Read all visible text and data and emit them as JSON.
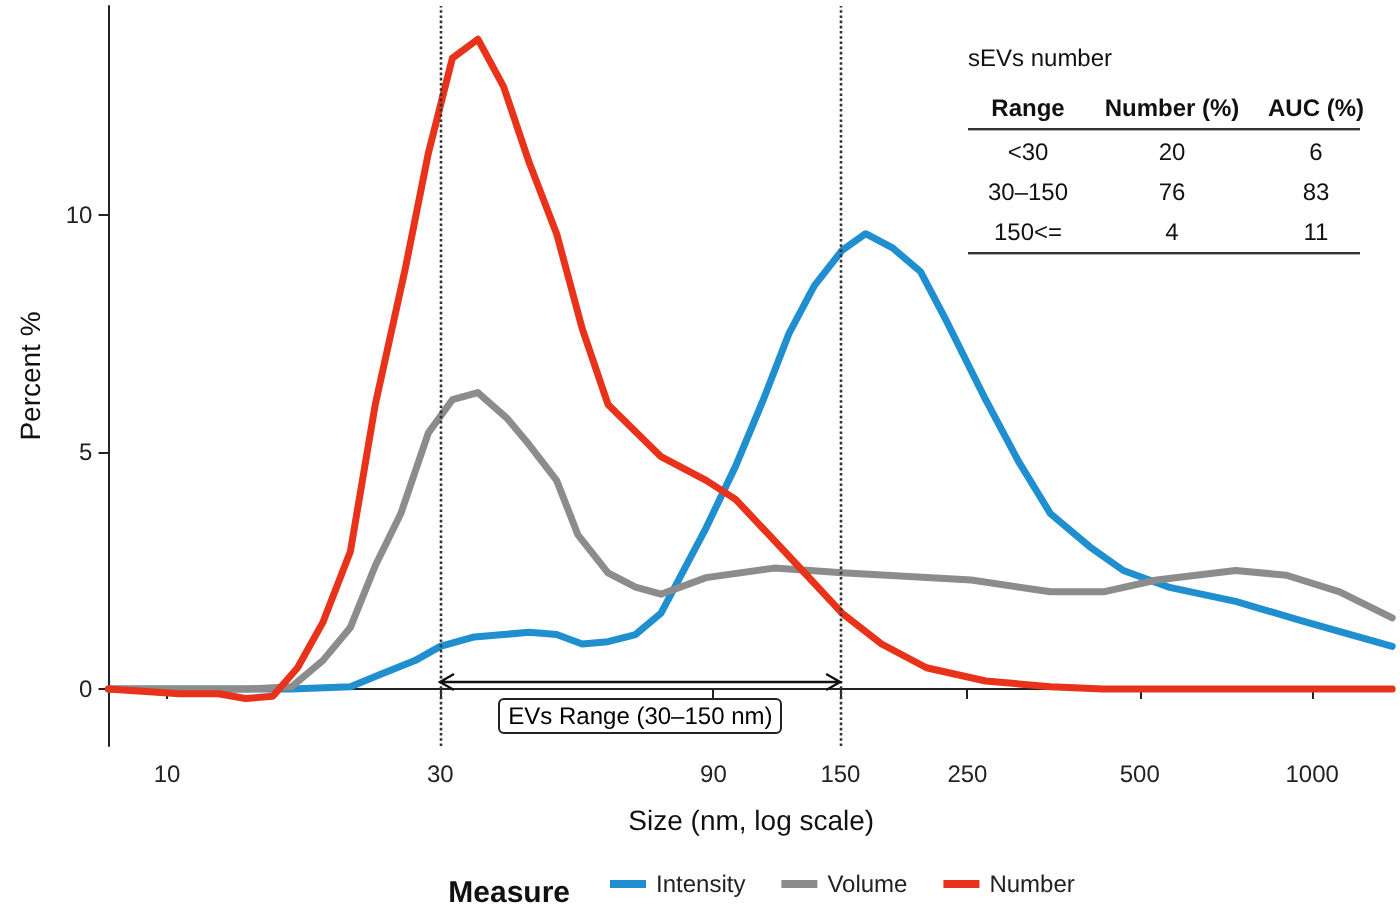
{
  "chart_data": {
    "type": "line",
    "xlabel": "Size (nm, log scale)",
    "ylabel": "Percent %",
    "legend_title": "Measure",
    "legend": "bottom",
    "grid": false,
    "marker": "none",
    "line_style": "solid",
    "log": "x",
    "xlim": [
      7.9,
      1390
    ],
    "xticks": [
      10,
      30,
      90,
      150,
      250,
      500,
      1000
    ],
    "ylim": [
      -1.2,
      14.4
    ],
    "yticks": [
      0,
      5,
      10
    ],
    "ref_lines": [
      {
        "axis": "x",
        "value": 30,
        "label": null,
        "color": "#333333",
        "line_style": "dotted"
      },
      {
        "axis": "x",
        "value": 150,
        "label": null,
        "color": "#333333",
        "line_style": "dotted"
      }
    ],
    "annotations": [
      "EVs Range (30–150 nm)",
      "sEVs number",
      "Range",
      "Number (%)",
      "AUC (%)",
      "<30",
      "20",
      "6",
      "30–150",
      "76",
      "83",
      "150<=",
      "4",
      "11"
    ],
    "series": [
      {
        "name": "Intensity",
        "color": "#1f8fcf",
        "x": [
          7.9,
          10.5,
          13.7,
          16.5,
          20.9,
          23.5,
          27.1,
          30.0,
          34.4,
          38.7,
          42.9,
          47.9,
          53.1,
          58.9,
          65.8,
          72.9,
          87.4,
          98.4,
          110,
          122,
          135,
          151,
          166,
          185,
          207,
          230,
          269,
          307,
          349,
          409,
          468,
          561,
          735,
          953,
          1380
        ],
        "values": [
          0,
          0,
          0,
          0,
          0.05,
          0.3,
          0.6,
          0.9,
          1.1,
          1.15,
          1.2,
          1.15,
          0.95,
          1.0,
          1.15,
          1.6,
          3.4,
          4.7,
          6.1,
          7.5,
          8.5,
          9.25,
          9.6,
          9.3,
          8.8,
          7.75,
          6.1,
          4.8,
          3.7,
          3.0,
          2.5,
          2.15,
          1.85,
          1.45,
          0.9
        ]
      },
      {
        "name": "Volume",
        "color": "#8c8c8c",
        "x": [
          7.9,
          10.5,
          13.7,
          16.5,
          18.7,
          20.9,
          23.1,
          25.6,
          28.6,
          31.5,
          34.9,
          39.3,
          42.9,
          47.9,
          52.2,
          58.9,
          65.8,
          72.9,
          87.4,
          115,
          151,
          254,
          349,
          432,
          535,
          735,
          902,
          1117,
          1380
        ],
        "values": [
          0,
          0,
          0,
          0.05,
          0.6,
          1.3,
          2.6,
          3.7,
          5.4,
          6.1,
          6.25,
          5.7,
          5.15,
          4.4,
          3.25,
          2.45,
          2.15,
          2.0,
          2.35,
          2.55,
          2.45,
          2.3,
          2.05,
          2.05,
          2.3,
          2.5,
          2.4,
          2.05,
          1.5
        ]
      },
      {
        "name": "Number",
        "color": "#e8321a",
        "x": [
          7.9,
          9.17,
          10.5,
          12.3,
          13.7,
          15.3,
          16.9,
          18.7,
          20.9,
          23.1,
          26.1,
          28.6,
          31.5,
          34.9,
          38.7,
          42.9,
          47.9,
          53.1,
          58.9,
          72.9,
          87.4,
          98.4,
          122,
          151,
          177,
          212,
          269,
          349,
          432,
          1380
        ],
        "values": [
          0,
          -0.05,
          -0.1,
          -0.1,
          -0.2,
          -0.15,
          0.45,
          1.4,
          2.9,
          6.0,
          8.9,
          11.3,
          13.3,
          13.7,
          12.7,
          11.1,
          9.6,
          7.6,
          6.0,
          4.9,
          4.4,
          4.0,
          2.8,
          1.6,
          0.95,
          0.45,
          0.17,
          0.05,
          0,
          0
        ]
      }
    ]
  }
}
